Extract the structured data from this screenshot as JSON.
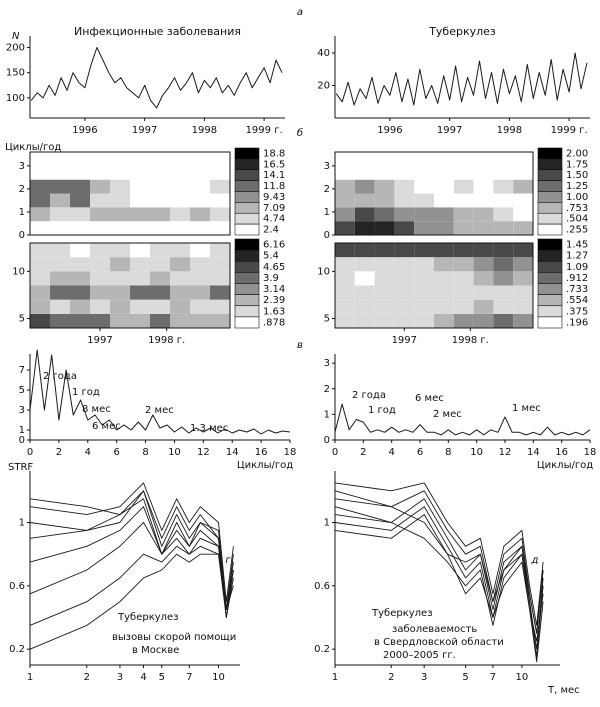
{
  "panel_labels": [
    "а",
    "б",
    "в",
    "г",
    "д"
  ],
  "chart_data": [
    {
      "type": "line",
      "title": "Инфекционные заболевания",
      "ylabel": "N",
      "color": "#1a1a1a",
      "x": [
        1995.1,
        1995.2,
        1995.3,
        1995.4,
        1995.5,
        1995.6,
        1995.7,
        1995.8,
        1995.9,
        1996.0,
        1996.1,
        1996.2,
        1996.3,
        1996.4,
        1996.5,
        1996.6,
        1996.7,
        1996.8,
        1996.9,
        1997.0,
        1997.1,
        1997.2,
        1997.3,
        1997.4,
        1997.5,
        1997.6,
        1997.7,
        1997.8,
        1997.9,
        1998.0,
        1998.1,
        1998.2,
        1998.3,
        1998.4,
        1998.5,
        1998.6,
        1998.7,
        1998.8,
        1998.9,
        1999.0,
        1999.1,
        1999.2,
        1999.3
      ],
      "values": [
        95,
        110,
        100,
        125,
        105,
        140,
        115,
        150,
        130,
        120,
        165,
        200,
        175,
        150,
        130,
        140,
        120,
        110,
        100,
        125,
        95,
        80,
        105,
        120,
        140,
        115,
        130,
        150,
        110,
        135,
        120,
        140,
        110,
        125,
        105,
        130,
        150,
        120,
        140,
        160,
        130,
        175,
        150
      ],
      "xlim": [
        1995.08,
        1999.35
      ],
      "xticks": [
        1996,
        1997,
        1998,
        {
          "value": 1999,
          "label": "1999 г."
        }
      ],
      "ylim": [
        60,
        215
      ],
      "yticks": [
        100,
        150,
        200
      ]
    },
    {
      "type": "line",
      "title": "Туберкулез",
      "color": "#1a1a1a",
      "x": [
        1995.1,
        1995.2,
        1995.3,
        1995.4,
        1995.5,
        1995.6,
        1995.7,
        1995.8,
        1995.9,
        1996.0,
        1996.1,
        1996.2,
        1996.3,
        1996.4,
        1996.5,
        1996.6,
        1996.7,
        1996.8,
        1996.9,
        1997.0,
        1997.1,
        1997.2,
        1997.3,
        1997.4,
        1997.5,
        1997.6,
        1997.7,
        1997.8,
        1997.9,
        1998.0,
        1998.1,
        1998.2,
        1998.3,
        1998.4,
        1998.5,
        1998.6,
        1998.7,
        1998.8,
        1998.9,
        1999.0,
        1999.1,
        1999.2,
        1999.3
      ],
      "values": [
        15,
        10,
        22,
        8,
        18,
        12,
        25,
        9,
        20,
        14,
        28,
        10,
        24,
        8,
        30,
        12,
        20,
        9,
        26,
        11,
        32,
        10,
        25,
        14,
        35,
        12,
        28,
        9,
        30,
        15,
        26,
        10,
        33,
        12,
        28,
        14,
        36,
        11,
        30,
        16,
        40,
        18,
        34
      ],
      "xlim": [
        1995.08,
        1999.35
      ],
      "xticks": [
        1996,
        1997,
        1998,
        {
          "value": 1999,
          "label": "1999 г."
        }
      ],
      "ylim": [
        0,
        48
      ],
      "yticks": [
        20,
        40
      ]
    },
    {
      "type": "heatmap",
      "ylabel": "Циклы/год",
      "x": [
        1996.1,
        1996.4,
        1996.7,
        1997.0,
        1997.3,
        1997.6,
        1997.9,
        1998.2,
        1998.5,
        1998.8
      ],
      "y": [
        0.3,
        0.9,
        1.5,
        2.1,
        2.7,
        3.3
      ],
      "values": [
        [
          3,
          3,
          3,
          2,
          2,
          2,
          2,
          2,
          2,
          2
        ],
        [
          8,
          6,
          7,
          8,
          9,
          9,
          8,
          7,
          8,
          7
        ],
        [
          13,
          9,
          12,
          7,
          5,
          4,
          4,
          3,
          4,
          3
        ],
        [
          12,
          14,
          12,
          9,
          5,
          3,
          3,
          4,
          3,
          5
        ],
        [
          3,
          4,
          3,
          3,
          2,
          2,
          2,
          3,
          2,
          3
        ],
        [
          1,
          1,
          1,
          1,
          1,
          1,
          1,
          1,
          1,
          1
        ]
      ],
      "xlim": [
        1995.95,
        1998.95
      ],
      "ylim": [
        0,
        3.6
      ],
      "yticks": [
        0,
        1,
        2,
        3
      ],
      "colorbar_ticks": [
        18.8,
        16.5,
        14.1,
        11.8,
        9.43,
        7.09,
        4.74,
        2.4
      ]
    },
    {
      "type": "heatmap",
      "x": [
        1996.1,
        1996.4,
        1996.7,
        1997.0,
        1997.3,
        1997.6,
        1997.9,
        1998.2,
        1998.5,
        1998.8
      ],
      "y": [
        0.3,
        0.9,
        1.5,
        2.1,
        2.7,
        3.3
      ],
      "values": [
        [
          1.6,
          1.9,
          1.8,
          1.6,
          1.2,
          1.0,
          0.9,
          0.9,
          0.8,
          0.9
        ],
        [
          1.1,
          1.5,
          1.3,
          1.2,
          1.1,
          1.0,
          0.9,
          0.8,
          0.6,
          0.5
        ],
        [
          0.9,
          0.8,
          0.8,
          0.7,
          0.6,
          0.5,
          0.5,
          0.5,
          0.4,
          0.5
        ],
        [
          0.9,
          1.0,
          0.9,
          0.7,
          0.5,
          0.5,
          0.6,
          0.5,
          0.6,
          0.9
        ],
        [
          0.4,
          0.4,
          0.3,
          0.4,
          0.3,
          0.3,
          0.4,
          0.4,
          0.3,
          0.3
        ],
        [
          0.2,
          0.2,
          0.2,
          0.2,
          0.2,
          0.2,
          0.2,
          0.2,
          0.2,
          0.2
        ]
      ],
      "xlim": [
        1995.95,
        1998.95
      ],
      "ylim": [
        0,
        3.6
      ],
      "yticks": [
        0,
        1,
        2,
        3
      ],
      "colorbar_ticks": [
        {
          "value": 2,
          "label": "2.00"
        },
        1.75,
        {
          "value": 1.5,
          "label": "1.50"
        },
        1.25,
        {
          "value": 1,
          "label": "1.00"
        },
        {
          "value": 0.753,
          "label": ".753"
        },
        {
          "value": 0.504,
          "label": ".504"
        },
        {
          "value": 0.255,
          "label": ".255"
        }
      ]
    },
    {
      "type": "heatmap",
      "x": [
        1996.1,
        1996.4,
        1996.7,
        1997.0,
        1997.3,
        1997.6,
        1997.9,
        1998.2,
        1998.5,
        1998.8
      ],
      "y": [
        4.75,
        6.25,
        7.75,
        9.25,
        10.75,
        12.25
      ],
      "values": [
        [
          5,
          4,
          4,
          4,
          3,
          3,
          4,
          3,
          3,
          3
        ],
        [
          3,
          2,
          3,
          2,
          3,
          2,
          2,
          3,
          2,
          2
        ],
        [
          3,
          4,
          4,
          3,
          3,
          4,
          4,
          3,
          3,
          4
        ],
        [
          2,
          3,
          3,
          2,
          2,
          2,
          3,
          2,
          2,
          2
        ],
        [
          2,
          2,
          2,
          2,
          3,
          2,
          2,
          3,
          2,
          2
        ],
        [
          2,
          2,
          1,
          2,
          2,
          1,
          2,
          2,
          1,
          2
        ]
      ],
      "xlim": [
        1995.95,
        1998.95
      ],
      "ylim": [
        4,
        13
      ],
      "yticks": [
        5,
        10
      ],
      "xticks": [
        1997,
        {
          "value": 1998,
          "label": "1998 г."
        }
      ],
      "colorbar_ticks": [
        6.16,
        5.4,
        4.65,
        3.9,
        3.14,
        2.39,
        1.63,
        {
          "value": 0.878,
          "label": ".878"
        }
      ]
    },
    {
      "type": "heatmap",
      "x": [
        1996.1,
        1996.4,
        1996.7,
        1997.0,
        1997.3,
        1997.6,
        1997.9,
        1998.2,
        1998.5,
        1998.8
      ],
      "y": [
        4.75,
        6.25,
        7.75,
        9.25,
        10.75,
        12.25
      ],
      "values": [
        [
          0.4,
          0.5,
          0.5,
          0.5,
          0.5,
          0.6,
          0.8,
          0.9,
          1.0,
          0.8
        ],
        [
          0.5,
          0.4,
          0.5,
          0.4,
          0.5,
          0.4,
          0.5,
          0.6,
          0.5,
          0.5
        ],
        [
          0.4,
          0.4,
          0.4,
          0.4,
          0.4,
          0.4,
          0.5,
          0.5,
          0.4,
          0.4
        ],
        [
          0.4,
          0.3,
          0.4,
          0.4,
          0.4,
          0.4,
          0.5,
          0.6,
          0.8,
          0.7
        ],
        [
          0.5,
          0.5,
          0.5,
          0.4,
          0.5,
          0.6,
          0.6,
          0.8,
          1.0,
          0.9
        ],
        [
          1.1,
          1.2,
          1.2,
          1.1,
          1.2,
          1.2,
          1.1,
          1.2,
          1.1,
          1.1
        ]
      ],
      "xlim": [
        1995.95,
        1998.95
      ],
      "ylim": [
        4,
        13
      ],
      "yticks": [
        5,
        10
      ],
      "xticks": [
        1997,
        {
          "value": 1998,
          "label": "1998 г."
        }
      ],
      "colorbar_ticks": [
        1.45,
        1.27,
        1.09,
        {
          "value": 0.912,
          "label": ".912"
        },
        {
          "value": 0.733,
          "label": ".733"
        },
        {
          "value": 0.554,
          "label": ".554"
        },
        {
          "value": 0.375,
          "label": ".375"
        },
        {
          "value": 0.196,
          "label": ".196"
        }
      ]
    },
    {
      "type": "line",
      "xlabel": "Циклы/год",
      "color": "#1a1a1a",
      "x": [
        0,
        0.5,
        1,
        1.5,
        2,
        2.5,
        3,
        3.5,
        4,
        4.5,
        5,
        5.5,
        6,
        6.5,
        7,
        7.5,
        8,
        8.5,
        9,
        9.5,
        10,
        10.5,
        11,
        11.5,
        12,
        12.5,
        13,
        13.5,
        14,
        14.5,
        15,
        15.5,
        16,
        16.5,
        17,
        17.5,
        18
      ],
      "values": [
        3,
        9,
        3,
        8.5,
        2,
        7,
        2.5,
        4,
        2,
        2.5,
        1.5,
        2,
        1,
        1.5,
        1,
        1.8,
        1,
        2.5,
        1.2,
        1.5,
        0.8,
        1.3,
        0.7,
        1.2,
        0.8,
        1.2,
        0.7,
        1.1,
        0.7,
        1,
        0.8,
        1.1,
        0.6,
        1,
        0.7,
        0.9,
        0.8
      ],
      "xlim": [
        0,
        18
      ],
      "xticks": [
        0,
        2,
        4,
        6,
        8,
        10,
        12,
        14,
        16,
        18
      ],
      "ylim": [
        0,
        8.2
      ],
      "yticks": [
        0,
        1,
        3,
        5,
        7
      ],
      "annotations": [
        "2 года",
        "1 год",
        "8 мес",
        "6 мес",
        "2 мес",
        "1.3 мес"
      ]
    },
    {
      "type": "line",
      "xlabel": "Циклы/год",
      "color": "#1a1a1a",
      "x": [
        0,
        0.5,
        1,
        1.5,
        2,
        2.5,
        3,
        3.5,
        4,
        4.5,
        5,
        5.5,
        6,
        6.5,
        7,
        7.5,
        8,
        8.5,
        9,
        9.5,
        10,
        10.5,
        11,
        11.5,
        12,
        12.5,
        13,
        13.5,
        14,
        14.5,
        15,
        15.5,
        16,
        16.5,
        17,
        17.5,
        18
      ],
      "values": [
        0.3,
        1.4,
        0.4,
        0.8,
        0.7,
        0.3,
        0.4,
        0.3,
        0.5,
        0.3,
        0.4,
        0.3,
        0.6,
        0.3,
        0.3,
        0.2,
        0.4,
        0.2,
        0.3,
        0.2,
        0.4,
        0.2,
        0.4,
        0.3,
        0.9,
        0.3,
        0.3,
        0.2,
        0.3,
        0.2,
        0.5,
        0.2,
        0.3,
        0.2,
        0.3,
        0.2,
        0.4
      ],
      "xlim": [
        0,
        18
      ],
      "xticks": [
        0,
        2,
        4,
        6,
        8,
        10,
        12,
        14,
        16,
        18
      ],
      "ylim": [
        0,
        3.2
      ],
      "yticks": [
        0,
        1,
        2,
        3
      ],
      "annotations": [
        "2 года",
        "1 год",
        "6 мес",
        "2 мес",
        "1 мес"
      ]
    },
    {
      "type": "line",
      "ylabel": "STRF",
      "xscale": "log",
      "x": [
        1,
        2,
        3,
        4,
        5,
        6,
        7,
        8,
        10,
        11,
        12
      ],
      "series": [
        {
          "color": "#1a1a1a",
          "values": [
            1.15,
            1.1,
            1.05,
            1.2,
            0.9,
            1.1,
            0.95,
            1.05,
            0.9,
            0.45,
            0.8
          ]
        },
        {
          "color": "#1a1a1a",
          "values": [
            1.1,
            1.05,
            1.1,
            1.25,
            0.95,
            1.15,
            1.0,
            1.1,
            1.0,
            0.5,
            0.85
          ]
        },
        {
          "color": "#1a1a1a",
          "values": [
            1.0,
            0.95,
            1.0,
            1.2,
            0.85,
            1.05,
            0.9,
            1.0,
            0.95,
            0.45,
            0.75
          ]
        },
        {
          "color": "#1a1a1a",
          "values": [
            0.9,
            0.95,
            1.05,
            1.15,
            0.8,
            1.0,
            0.85,
            1.0,
            0.9,
            0.4,
            0.7
          ]
        },
        {
          "color": "#1a1a1a",
          "values": [
            0.75,
            0.85,
            0.95,
            1.1,
            0.8,
            0.95,
            0.85,
            0.95,
            0.85,
            0.45,
            0.7
          ]
        },
        {
          "color": "#1a1a1a",
          "values": [
            0.55,
            0.7,
            0.85,
            1.0,
            0.8,
            0.9,
            0.8,
            0.9,
            0.85,
            0.45,
            0.7
          ]
        },
        {
          "color": "#1a1a1a",
          "values": [
            0.35,
            0.5,
            0.65,
            0.8,
            0.75,
            0.85,
            0.8,
            0.85,
            0.8,
            0.4,
            0.65
          ]
        },
        {
          "color": "#1a1a1a",
          "values": [
            0.2,
            0.35,
            0.5,
            0.65,
            0.7,
            0.8,
            0.75,
            0.8,
            0.8,
            0.45,
            0.6
          ]
        }
      ],
      "xlim": [
        1,
        13
      ],
      "xticks": [
        1,
        2,
        3,
        4,
        5,
        7,
        10
      ],
      "ylim": [
        0.1,
        1.3
      ],
      "yticks": [
        0.2,
        0.6,
        1
      ],
      "annotations": [
        "Туберкулез",
        "вызовы скорой помощи",
        "в Москве"
      ]
    },
    {
      "type": "line",
      "xlabel": "T, мес",
      "xscale": "log",
      "x": [
        1,
        2,
        3,
        4,
        5,
        6,
        7,
        8,
        10,
        11,
        12,
        13
      ],
      "series": [
        {
          "color": "#1a1a1a",
          "values": [
            1.25,
            1.2,
            1.25,
            1.0,
            0.85,
            0.9,
            0.55,
            0.85,
            0.95,
            0.6,
            0.35,
            0.75
          ]
        },
        {
          "color": "#1a1a1a",
          "values": [
            1.15,
            1.1,
            1.2,
            0.95,
            0.8,
            0.85,
            0.5,
            0.8,
            0.9,
            0.55,
            0.3,
            0.7
          ]
        },
        {
          "color": "#1a1a1a",
          "values": [
            1.1,
            1.0,
            1.15,
            0.9,
            0.7,
            0.8,
            0.45,
            0.75,
            0.85,
            0.5,
            0.2,
            0.65
          ]
        },
        {
          "color": "#1a1a1a",
          "values": [
            1.0,
            0.95,
            1.1,
            0.85,
            0.65,
            0.75,
            0.4,
            0.7,
            0.8,
            0.5,
            0.15,
            0.6
          ]
        },
        {
          "color": "#1a1a1a",
          "values": [
            1.2,
            1.1,
            1.0,
            0.8,
            0.75,
            0.8,
            0.5,
            0.7,
            0.85,
            0.55,
            0.3,
            0.7
          ]
        },
        {
          "color": "#1a1a1a",
          "values": [
            1.05,
            1.0,
            0.9,
            0.75,
            0.6,
            0.7,
            0.35,
            0.65,
            0.8,
            0.45,
            0.25,
            0.55
          ]
        },
        {
          "color": "#1a1a1a",
          "values": [
            0.95,
            0.9,
            1.05,
            0.8,
            0.55,
            0.65,
            0.4,
            0.6,
            0.75,
            0.45,
            0.12,
            0.5
          ]
        }
      ],
      "xlim": [
        1,
        16
      ],
      "xticks": [
        1,
        2,
        3,
        5,
        7,
        10
      ],
      "ylim": [
        0.1,
        1.3
      ],
      "yticks": [
        0.2,
        0.6,
        1
      ],
      "annotations": [
        "Туберкулез",
        "заболеваемость",
        "в Свердловской области",
        "2000–2005 гг."
      ]
    }
  ]
}
